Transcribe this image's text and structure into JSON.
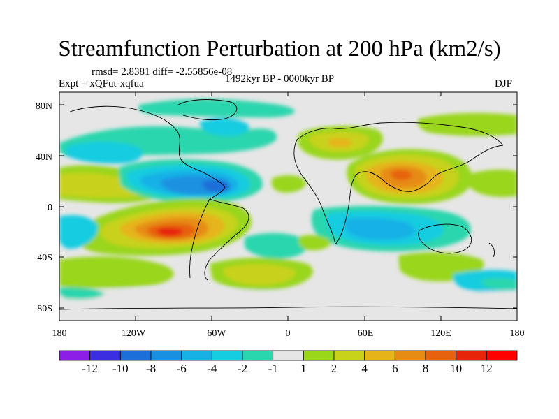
{
  "title": "Streamfunction Perturbation at 200 hPa (km2/s)",
  "stats": "rmsd= 2.8381 diff= -2.55856e-08",
  "experiment": "Expt = xQFut-xqfua",
  "period": "1492kyr BP - 0000kyr BP",
  "season": "DJF",
  "lat_ticks": [
    "80N",
    "40N",
    "0",
    "40S",
    "80S"
  ],
  "lon_ticks": [
    "180",
    "120W",
    "60W",
    "0",
    "60E",
    "120E",
    "180"
  ],
  "colorbar": {
    "labels": [
      "-12",
      "-10",
      "-8",
      "-6",
      "-4",
      "-2",
      "-1",
      "1",
      "2",
      "4",
      "6",
      "8",
      "10",
      "12"
    ],
    "colors": [
      "#8c1ee6",
      "#3b2ee0",
      "#1c6ed8",
      "#1a91e0",
      "#17b1e6",
      "#16cce0",
      "#2ad6ad",
      "#e6e6e6",
      "#9ad61a",
      "#c8d21a",
      "#e6b41a",
      "#e68c14",
      "#e6620f",
      "#e6240a",
      "#ff0000"
    ]
  },
  "colors": {
    "background": "#ffffff",
    "zero_band": "#e6e6e6",
    "coast": "#000000"
  }
}
